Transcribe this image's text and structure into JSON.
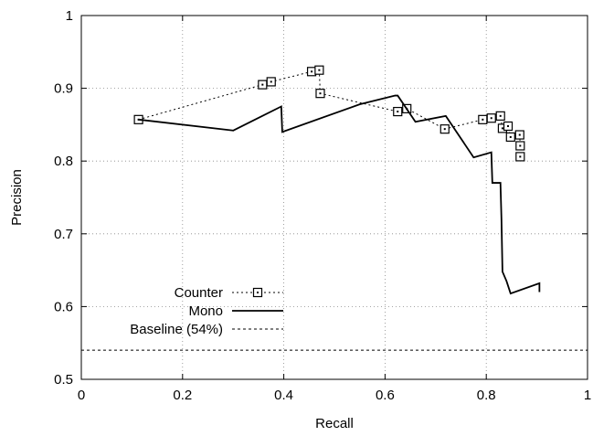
{
  "chart_data": {
    "type": "line",
    "title": "",
    "xlabel": "Recall",
    "ylabel": "Precision",
    "xlim": [
      0,
      1
    ],
    "ylim": [
      0.5,
      1
    ],
    "xticks": [
      "0",
      "0.2",
      "0.4",
      "0.6",
      "0.8",
      "1"
    ],
    "yticks": [
      "0.5",
      "0.6",
      "0.7",
      "0.8",
      "0.9",
      "1"
    ],
    "grid": true,
    "legend_position": "bottom-left",
    "series": [
      {
        "name": "Counter",
        "style": "dotted-with-square-markers",
        "x": [
          0.113,
          0.358,
          0.375,
          0.455,
          0.47,
          0.472,
          0.625,
          0.643,
          0.718,
          0.793,
          0.81,
          0.828,
          0.832,
          0.843,
          0.848,
          0.866,
          0.867,
          0.867
        ],
        "y": [
          0.857,
          0.905,
          0.909,
          0.923,
          0.925,
          0.893,
          0.868,
          0.872,
          0.844,
          0.857,
          0.859,
          0.862,
          0.845,
          0.848,
          0.833,
          0.836,
          0.821,
          0.806
        ]
      },
      {
        "name": "Mono",
        "style": "solid",
        "x": [
          0.113,
          0.3,
          0.395,
          0.397,
          0.55,
          0.62,
          0.625,
          0.66,
          0.72,
          0.775,
          0.81,
          0.812,
          0.815,
          0.828,
          0.83,
          0.832,
          0.84,
          0.848,
          0.905,
          0.905
        ],
        "y": [
          0.857,
          0.842,
          0.875,
          0.84,
          0.878,
          0.89,
          0.89,
          0.854,
          0.862,
          0.805,
          0.812,
          0.77,
          0.77,
          0.77,
          0.72,
          0.648,
          0.635,
          0.618,
          0.632,
          0.62
        ]
      },
      {
        "name": "Baseline (54%)",
        "style": "dashed",
        "x": [
          0,
          1
        ],
        "y": [
          0.54,
          0.54
        ]
      }
    ]
  }
}
